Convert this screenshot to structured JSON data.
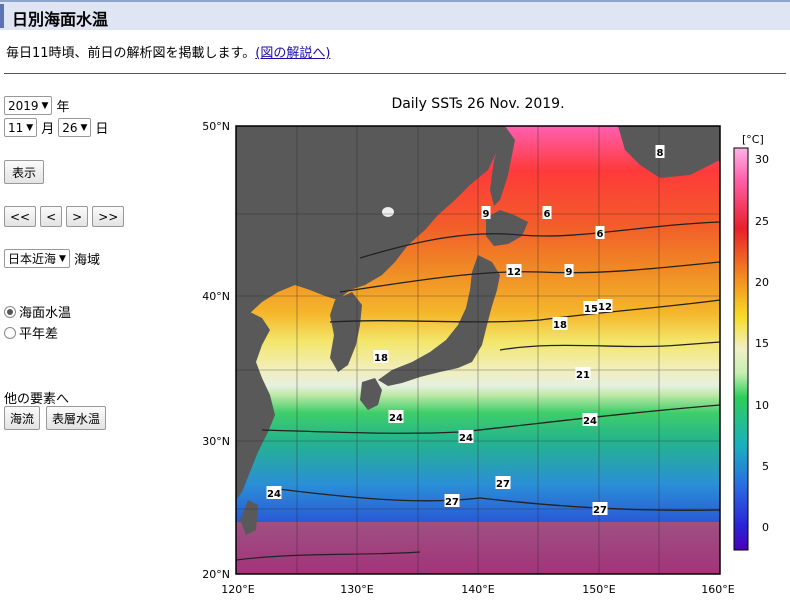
{
  "page_title": "日別海面水温",
  "intro": {
    "text": "毎日11時頃、前日の解析図を掲載します。",
    "link": "(図の解説へ)"
  },
  "date": {
    "year": "2019",
    "year_unit": "年",
    "month": "11",
    "month_unit": "月",
    "day": "26",
    "day_unit": "日"
  },
  "show_button": "表示",
  "nav_buttons": [
    "<<",
    "<",
    ">",
    ">>"
  ],
  "region": {
    "value": "日本近海",
    "unit": "海域"
  },
  "radios": [
    {
      "label": "海面水温",
      "selected": true
    },
    {
      "label": "平年差",
      "selected": false
    }
  ],
  "other_heading": "他の要素へ",
  "other_buttons": [
    "海流",
    "表層水温"
  ],
  "map": {
    "title": "Daily SSTs 26 Nov. 2019.",
    "lat_labels": [
      "50°N",
      "40°N",
      "30°N",
      "20°N"
    ],
    "lon_labels": [
      "120°E",
      "130°E",
      "140°E",
      "150°E",
      "160°E"
    ],
    "colorbar_unit": "[°C]",
    "colorbar_ticks": [
      "30",
      "25",
      "20",
      "15",
      "10",
      "5",
      "0"
    ],
    "contour_labels": [
      "8",
      "9",
      "6",
      "6",
      "12",
      "9",
      "15",
      "12",
      "18",
      "18",
      "21",
      "24",
      "24",
      "24",
      "24",
      "27",
      "27",
      "27"
    ]
  }
}
